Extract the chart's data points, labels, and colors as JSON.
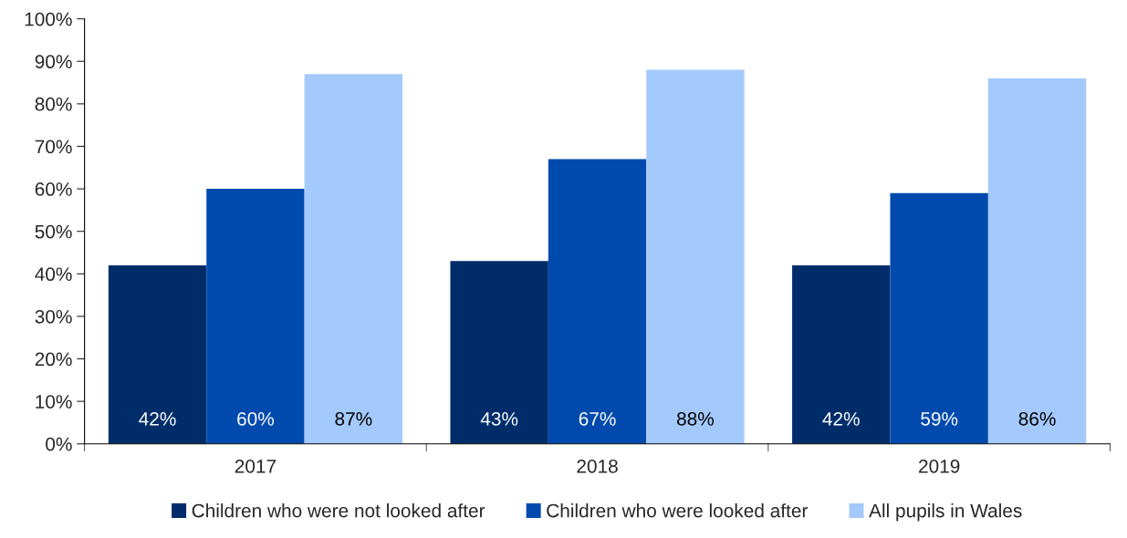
{
  "chart_data": {
    "type": "bar",
    "categories": [
      "2017",
      "2018",
      "2019"
    ],
    "series": [
      {
        "name": "Children who were not looked after",
        "color": "#002d6a",
        "values": [
          42,
          43,
          42
        ],
        "value_labels": [
          "42%",
          "43%",
          "42%"
        ]
      },
      {
        "name": "Children who were looked after",
        "color": "#004aad",
        "values": [
          60,
          67,
          59
        ],
        "value_labels": [
          "60%",
          "67%",
          "59%"
        ]
      },
      {
        "name": "All pupils in Wales",
        "color": "#a4c9fd",
        "values": [
          87,
          88,
          86
        ],
        "value_labels": [
          "87%",
          "88%",
          "86%"
        ]
      }
    ],
    "ylim": [
      0,
      100
    ],
    "yticks": [
      {
        "value": 0,
        "label": "0%"
      },
      {
        "value": 10,
        "label": "10%"
      },
      {
        "value": 20,
        "label": "20%"
      },
      {
        "value": 30,
        "label": "30%"
      },
      {
        "value": 40,
        "label": "40%"
      },
      {
        "value": 50,
        "label": "50%"
      },
      {
        "value": 60,
        "label": "60%"
      },
      {
        "value": 70,
        "label": "70%"
      },
      {
        "value": 80,
        "label": "80%"
      },
      {
        "value": 90,
        "label": "90%"
      },
      {
        "value": 100,
        "label": "100%"
      }
    ],
    "grid": false,
    "legend": "bottom"
  }
}
